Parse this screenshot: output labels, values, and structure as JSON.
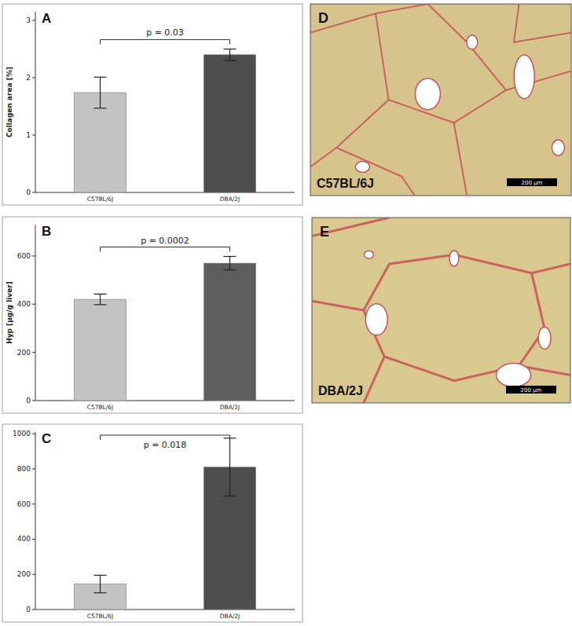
{
  "chart_data": [
    {
      "type": "bar",
      "title": "A",
      "y_label": "Collagen area [%]",
      "categories": [
        "C57BL/6J",
        "DBA/2J"
      ],
      "values": [
        1.74,
        2.4
      ],
      "errors": [
        0.27,
        0.1
      ],
      "colors": [
        "#c3c3c3",
        "#4d4d4d"
      ],
      "ylim": [
        0,
        3.15
      ],
      "yticks": [
        0,
        1,
        2,
        3
      ],
      "annotations": [
        {
          "text": "p = 0.03"
        }
      ]
    },
    {
      "type": "bar",
      "title": "B",
      "y_label": "Hyp [µg/g liver]",
      "categories": [
        "C57BL/6J",
        "DBA/2J"
      ],
      "values": [
        420,
        570
      ],
      "errors": [
        22,
        28
      ],
      "colors": [
        "#c3c3c3",
        "#5e5e5e"
      ],
      "ylim": [
        0,
        730
      ],
      "yticks": [
        0,
        200,
        400,
        600
      ],
      "annotations": [
        {
          "text": "p = 0.0002"
        }
      ]
    },
    {
      "type": "bar",
      "title": "C",
      "categories": [
        "C57BL/6J",
        "DBA/2J"
      ],
      "values": [
        145,
        810
      ],
      "errors": [
        50,
        165
      ],
      "colors": [
        "#c3c3c3",
        "#4d4d4d"
      ],
      "ylim": [
        0,
        1010
      ],
      "yticks": [
        0,
        200,
        400,
        600,
        800,
        1000
      ],
      "annotations": [
        {
          "text": "p = 0.018"
        }
      ]
    }
  ],
  "images": [
    {
      "letter": "D",
      "label": "C57BL/6J",
      "scale_bar": "200 µm"
    },
    {
      "letter": "E",
      "label": "DBA/2J",
      "scale_bar": "200 µm"
    }
  ]
}
